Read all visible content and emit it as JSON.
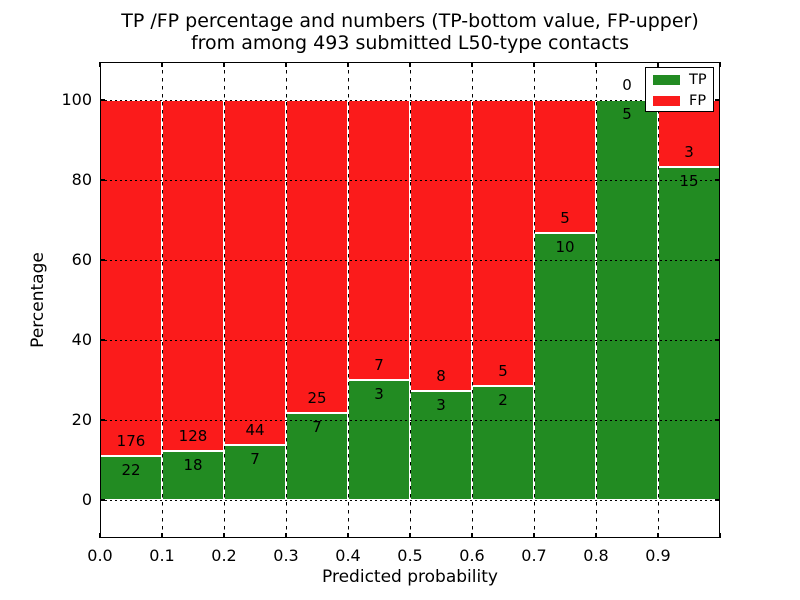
{
  "chart_data": {
    "type": "bar",
    "stacked": true,
    "title_line1": "TP /FP percentage and numbers (TP-bottom value, FP-upper)",
    "title_line2": "from among 493 submitted L50-type contacts",
    "total_submitted": 493,
    "xlabel": "Predicted probability",
    "ylabel": "Percentage",
    "x_tick_labels": [
      "0.0",
      "0.1",
      "0.2",
      "0.3",
      "0.4",
      "0.5",
      "0.6",
      "0.7",
      "0.8",
      "0.9"
    ],
    "y_tick_labels": [
      "0",
      "20",
      "40",
      "60",
      "80",
      "100"
    ],
    "y_tick_values": [
      0,
      20,
      40,
      60,
      80,
      100
    ],
    "xlim": [
      0.0,
      1.0
    ],
    "ylim": [
      -10,
      110
    ],
    "grid": "dotted",
    "bar_edge_color": "#ffffff",
    "categories": [
      "0.0-0.1",
      "0.1-0.2",
      "0.2-0.3",
      "0.3-0.4",
      "0.4-0.5",
      "0.5-0.6",
      "0.6-0.7",
      "0.7-0.8",
      "0.8-0.9",
      "0.9-1.0"
    ],
    "series": [
      {
        "name": "TP",
        "color": "#228b22",
        "values": [
          22,
          18,
          7,
          7,
          3,
          3,
          2,
          10,
          5,
          15
        ]
      },
      {
        "name": "FP",
        "color": "#fb1b1b",
        "values": [
          176,
          128,
          44,
          25,
          7,
          8,
          5,
          5,
          0,
          3
        ]
      }
    ],
    "legend": {
      "position": "upper right",
      "entries": [
        {
          "label": "TP",
          "color": "#228b22"
        },
        {
          "label": "FP",
          "color": "#fb1b1b"
        }
      ]
    }
  }
}
